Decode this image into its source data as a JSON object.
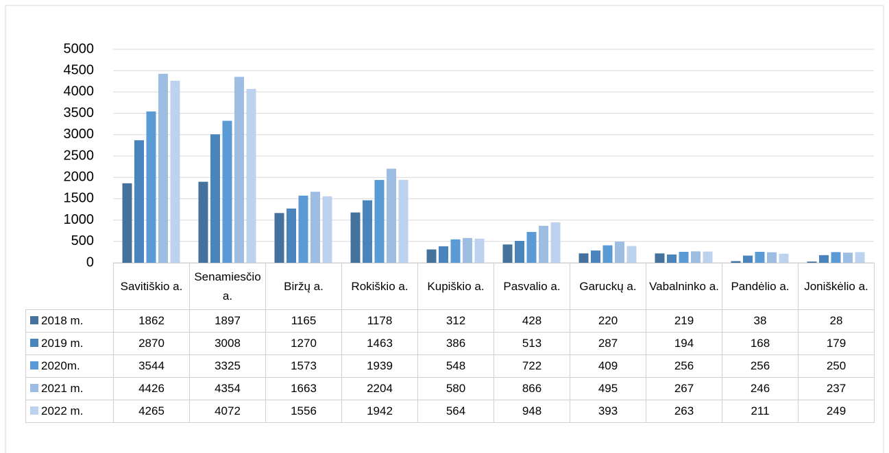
{
  "chart_data": {
    "type": "bar",
    "categories": [
      "Savitiškio a.",
      "Senamiesčio a.",
      "Biržų a.",
      "Rokiškio a.",
      "Kupiškio a.",
      "Pasvalio a.",
      "Garuckų a.",
      "Vabalninko a.",
      "Pandėlio a.",
      "Joniškėlio a."
    ],
    "series": [
      {
        "name": "2018 m.",
        "color": "#44729d",
        "values": [
          1862,
          1897,
          1165,
          1178,
          312,
          428,
          220,
          219,
          38,
          28
        ]
      },
      {
        "name": "2019 m.",
        "color": "#4a84bd",
        "values": [
          2870,
          3008,
          1270,
          1463,
          386,
          513,
          287,
          194,
          168,
          179
        ]
      },
      {
        "name": "2020m.",
        "color": "#5b9bd5",
        "values": [
          3544,
          3325,
          1573,
          1939,
          548,
          722,
          409,
          256,
          256,
          250
        ]
      },
      {
        "name": "2021 m.",
        "color": "#9dbde3",
        "values": [
          4426,
          4354,
          1663,
          2204,
          580,
          866,
          495,
          267,
          246,
          237
        ]
      },
      {
        "name": "2022 m.",
        "color": "#bcd2ee",
        "values": [
          4265,
          4072,
          1556,
          1942,
          564,
          948,
          393,
          263,
          211,
          249
        ]
      }
    ],
    "ylim": [
      0,
      5000
    ],
    "yticks": [
      0,
      500,
      1000,
      1500,
      2000,
      2500,
      3000,
      3500,
      4000,
      4500,
      5000
    ],
    "grid": true
  }
}
